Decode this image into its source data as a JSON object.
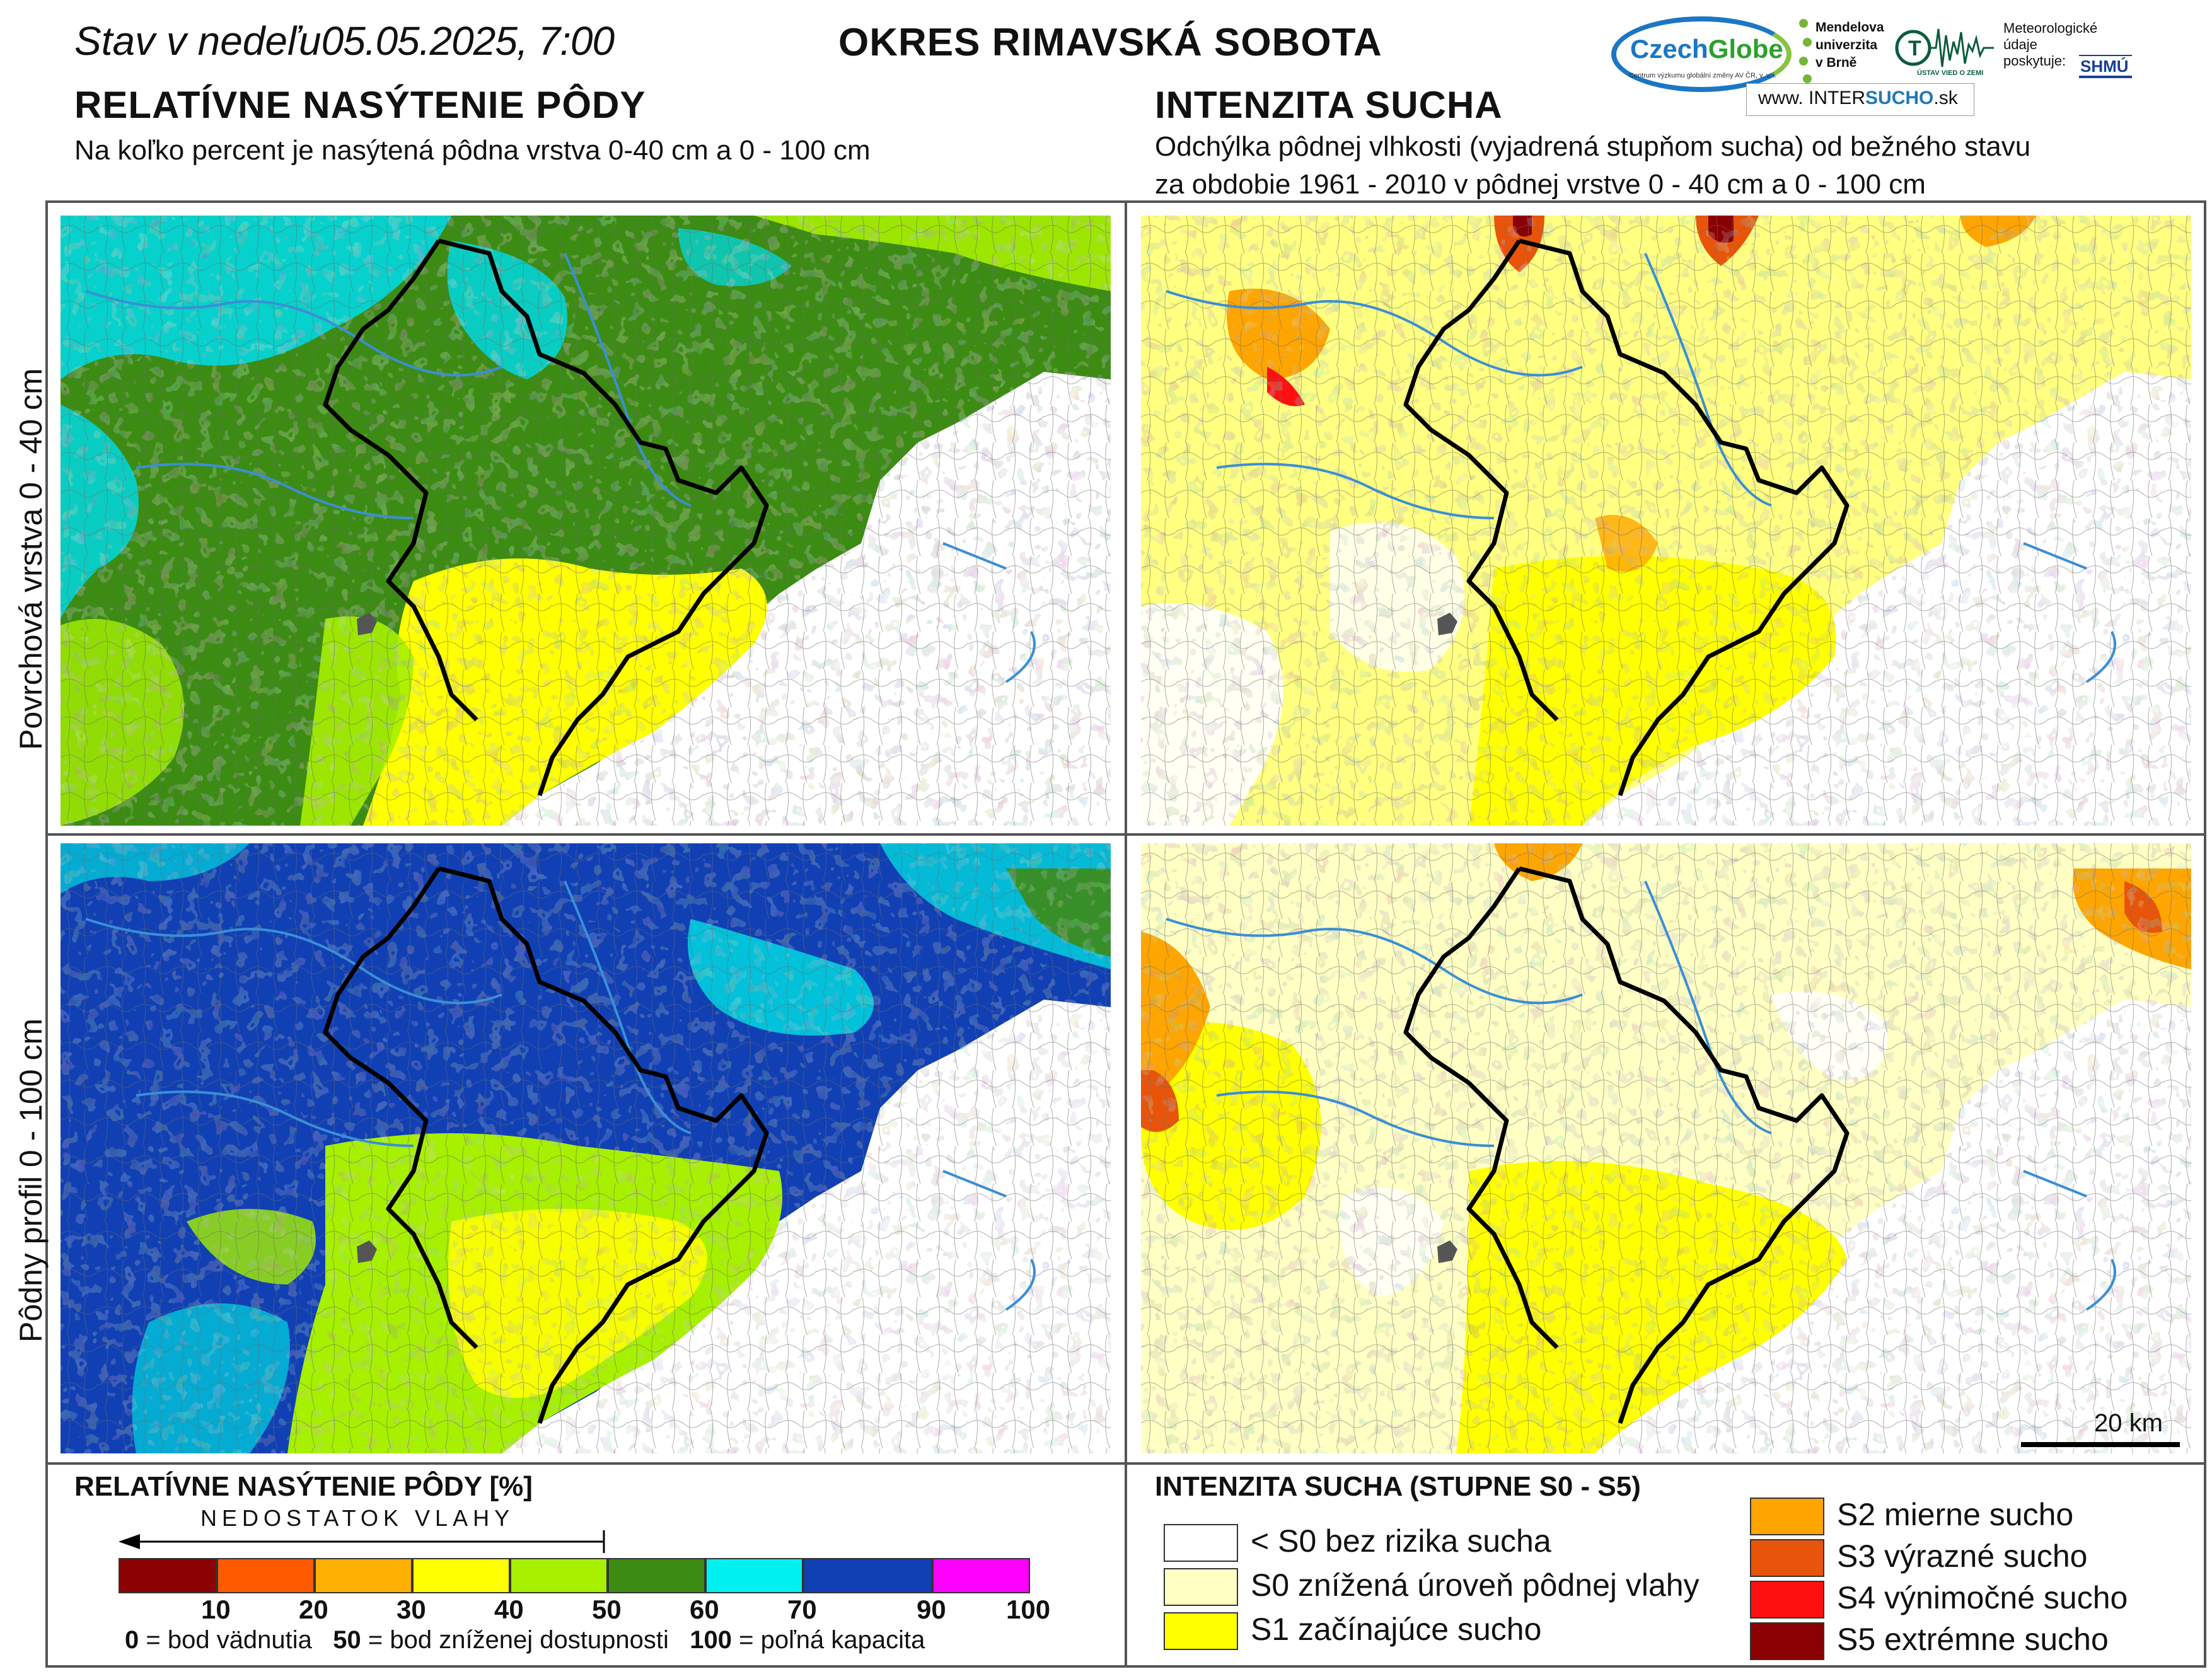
{
  "header": {
    "date_prefix": "Stav v nedeľu",
    "date": "05.05.2025, 7:00",
    "district": "OKRES  RIMAVSKÁ SOBOTA"
  },
  "left_section": {
    "title": "RELATÍVNE NASÝTENIE PÔDY",
    "subtitle": "Na koľko percent je nasýtená pôdna vrstva 0-40 cm a 0 - 100 cm"
  },
  "right_section": {
    "title": "INTENZITA SUCHA",
    "subtitle_line1": "Odchýlka pôdnej vlhkosti (vyjadrená stupňom sucha) od bežného stavu",
    "subtitle_line2": "za obdobie 1961 - 2010 v pôdnej vrstve 0 - 40 cm a 0 - 100 cm"
  },
  "logos": {
    "czechglobe_a": "Czech",
    "czechglobe_b": "Globe",
    "czechglobe_tag": "Centrum výzkumu globální změny AV ČR, v. v. i.",
    "mendel": "Mendelova\nuniverzita\nv Brně",
    "uvz": "ÚSTAV VIED O ZEMI",
    "meteo": "Meteorologické\núdaje\nposkytuje:",
    "meteo_org": "SHMÚ",
    "intersucho_prefix": "www.",
    "intersucho_a": "INTER",
    "intersucho_b": "SUCHO",
    "intersucho_suffix": ".sk"
  },
  "row_labels": {
    "top": "Povrchová vrstva 0 - 40 cm",
    "bottom": "Pôdny profil 0 - 100 cm"
  },
  "scale": {
    "label": "20 km"
  },
  "legend_left": {
    "title": "RELATÍVNE NASÝTENIE PÔDY [%]",
    "lack_label": "NEDOSTATOK VLAHY",
    "ticks": [
      "10",
      "20",
      "30",
      "40",
      "50",
      "60",
      "70",
      "90",
      "100"
    ],
    "colors": [
      "#8b0000",
      "#ff5a00",
      "#ffb000",
      "#ffff00",
      "#a6f000",
      "#3c8c14",
      "#00f0f0",
      "#1040b4",
      "#ff00ff"
    ],
    "note_0": "0",
    "note_0_text": " = bod vädnutia",
    "note_50": "50",
    "note_50_text": " = bod zníženej dostupnosti",
    "note_100": "100",
    "note_100_text": " = poľná kapacita"
  },
  "legend_right": {
    "title": "INTENZITA SUCHA (STUPNE S0 - S5)",
    "items": [
      {
        "label": "< S0 bez rizika sucha",
        "color": "#ffffff"
      },
      {
        "label": "S0 znížená úroveň pôdnej vlahy",
        "color": "#ffffc4"
      },
      {
        "label": "S1 začínajúce sucho",
        "color": "#ffff00"
      },
      {
        "label": "S2 mierne sucho",
        "color": "#ffa500"
      },
      {
        "label": "S3 výrazné sucho",
        "color": "#e8550a"
      },
      {
        "label": "S4 výnimočné sucho",
        "color": "#ff1010"
      },
      {
        "label": "S5 extrémne sucho",
        "color": "#8b0000"
      }
    ]
  }
}
